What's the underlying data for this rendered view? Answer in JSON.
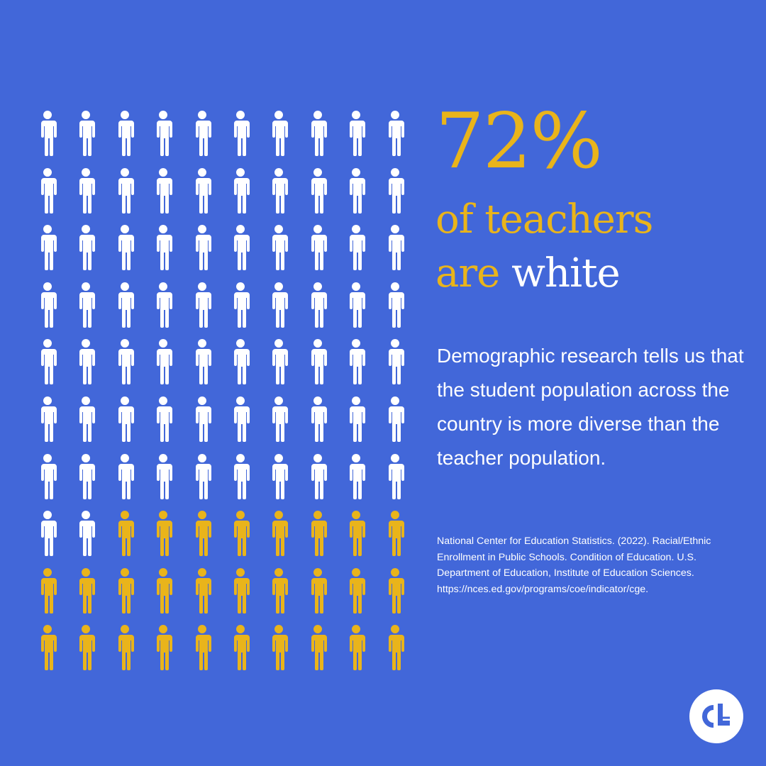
{
  "pictogram": {
    "total": 100,
    "columns": 10,
    "highlighted_count": 72,
    "highlighted_color": "#FFFFFF",
    "other_color": "#E9B41B",
    "icon": "person-icon"
  },
  "stat": {
    "number": "72%",
    "line1": "of teachers",
    "line2_prefix": "are",
    "line2_emphasis": "white"
  },
  "description": "Demographic research tells us that the student population across the country is more diverse than the teacher population.",
  "citation": "National Center for Education Statistics. (2022). Racial/Ethnic Enrollment in Public Schools. Condition of Education. U.S. Department of Education, Institute of Education Sciences. https://nces.ed.gov/programs/coe/indicator/cge.",
  "colors": {
    "background": "#4267D9",
    "accent": "#E9B41B",
    "white": "#FFFFFF"
  },
  "logo": {
    "icon": "cl-logo-icon"
  }
}
